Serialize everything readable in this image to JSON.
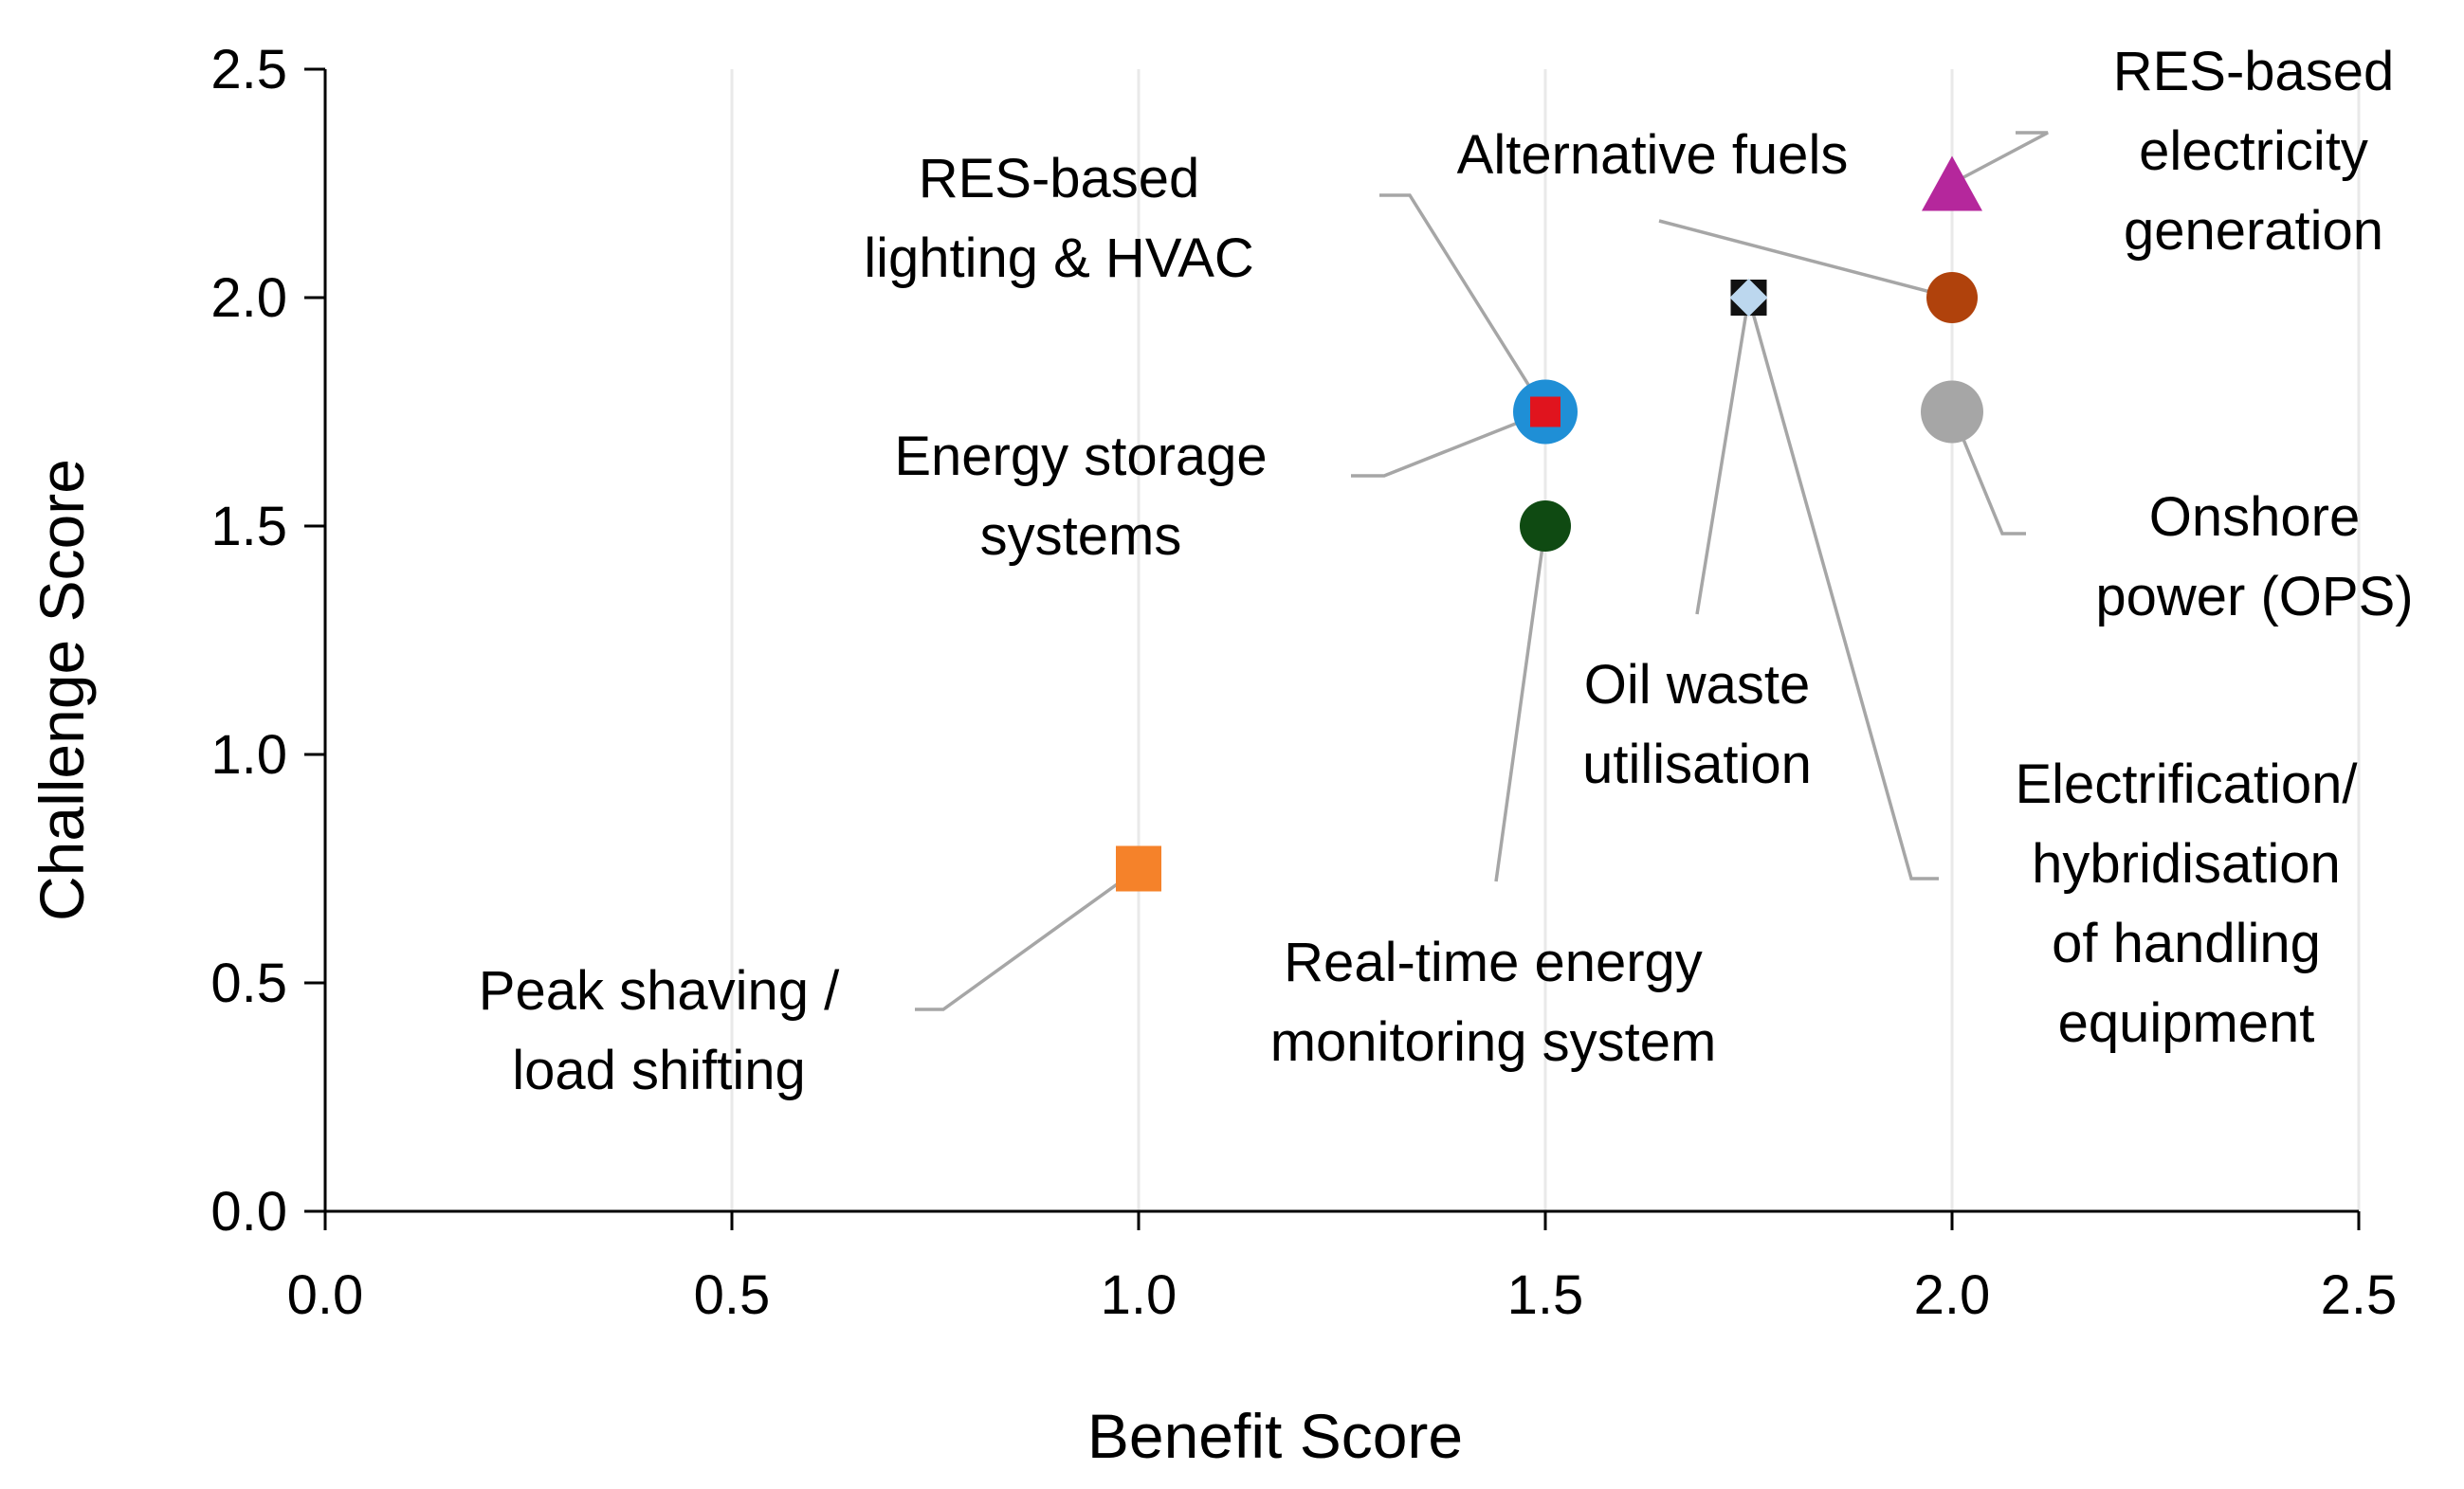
{
  "chart_data": {
    "type": "scatter",
    "xlabel": "Benefit Score",
    "ylabel": "Challenge Score",
    "xlim": [
      0,
      2.5
    ],
    "ylim": [
      0,
      2.5
    ],
    "xticks": [
      "0.0",
      "0.5",
      "1.0",
      "1.5",
      "2.0",
      "2.5"
    ],
    "yticks": [
      "0.0",
      "0.5",
      "1.0",
      "1.5",
      "2.0",
      "2.5"
    ],
    "grid": "vertical",
    "legend": "none",
    "points": [
      {
        "id": "res-electricity",
        "label": [
          "RES-based",
          "electricity",
          "generation"
        ],
        "x": 2.0,
        "y": 2.25,
        "marker": "triangle",
        "color": "#b5279c"
      },
      {
        "id": "alternative-fuels",
        "label": [
          "Alternative fuels"
        ],
        "x": 2.0,
        "y": 2.0,
        "marker": "circle",
        "color": "#b0420c"
      },
      {
        "id": "onshore-power",
        "label": [
          "Onshore",
          "power (OPS)"
        ],
        "x": 2.0,
        "y": 1.75,
        "marker": "circle",
        "color": "#a6a6a6"
      },
      {
        "id": "electrification",
        "label": [
          "Electrification/",
          "hybridisation",
          "of handling",
          "equipment"
        ],
        "x": 1.75,
        "y": 2.0,
        "marker": "square",
        "color": "#111111"
      },
      {
        "id": "oil-waste",
        "label": [
          "Oil waste",
          "utilisation"
        ],
        "x": 1.75,
        "y": 2.0,
        "marker": "diamond",
        "color": "#bcd7ee"
      },
      {
        "id": "energy-storage",
        "label": [
          "Energy storage",
          "systems"
        ],
        "x": 1.5,
        "y": 1.75,
        "marker": "circle",
        "color": "#1f8fd6"
      },
      {
        "id": "res-lighting",
        "label": [
          "RES-based",
          "lighting & HVAC"
        ],
        "x": 1.5,
        "y": 1.75,
        "marker": "square",
        "color": "#e0141e"
      },
      {
        "id": "real-time-monitoring",
        "label": [
          "Real-time energy",
          "monitoring system"
        ],
        "x": 1.5,
        "y": 1.5,
        "marker": "circle",
        "color": "#0f4a12"
      },
      {
        "id": "peak-shaving",
        "label": [
          "Peak shaving /",
          "load shifting"
        ],
        "x": 1.0,
        "y": 0.75,
        "marker": "square",
        "color": "#f5822a"
      }
    ]
  }
}
